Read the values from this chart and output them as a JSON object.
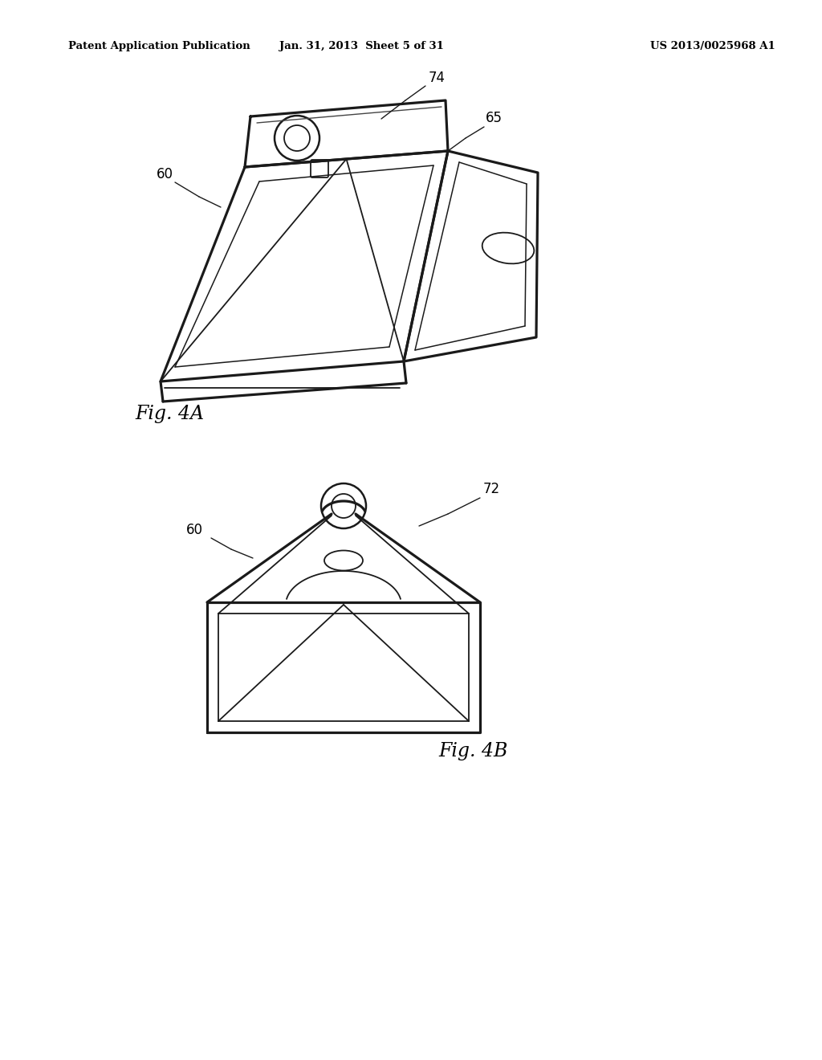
{
  "background_color": "#ffffff",
  "header_left": "Patent Application Publication",
  "header_center": "Jan. 31, 2013  Sheet 5 of 31",
  "header_right": "US 2013/0025968 A1",
  "fig4a_label": "Fig. 4A",
  "fig4b_label": "Fig. 4B",
  "line_color": "#1a1a1a",
  "line_width": 1.8,
  "text_color": "#000000"
}
